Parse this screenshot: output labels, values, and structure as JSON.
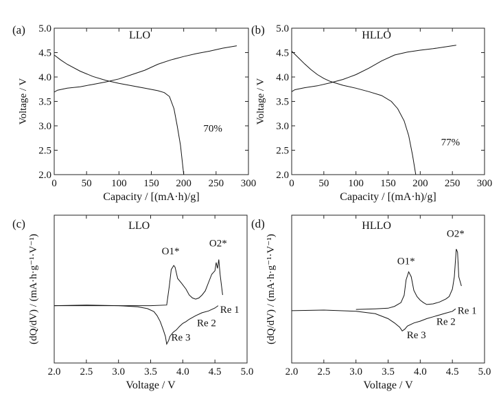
{
  "chart_data": [
    {
      "id": "a",
      "type": "line",
      "panel_label": "(a)",
      "title": "LLO",
      "xlabel": "Capacity / [(mA·h)/g]",
      "ylabel": "Voltage / V",
      "xlim": [
        0,
        300
      ],
      "ylim": [
        2.0,
        5.0
      ],
      "xticks": [
        "0",
        "50",
        "100",
        "150",
        "200",
        "250",
        "300"
      ],
      "yticks": [
        "2.0",
        "2.5",
        "3.0",
        "3.5",
        "4.0",
        "4.5",
        "5.0"
      ],
      "annotations": [
        {
          "text": "70%",
          "x": 245,
          "y": 2.88
        }
      ],
      "series": [
        {
          "values": [
            [
              0,
              3.69
            ],
            [
              5,
              3.73
            ],
            [
              20,
              3.77
            ],
            [
              40,
              3.8
            ],
            [
              60,
              3.85
            ],
            [
              80,
              3.9
            ],
            [
              100,
              3.96
            ],
            [
              120,
              4.05
            ],
            [
              140,
              4.14
            ],
            [
              160,
              4.26
            ],
            [
              180,
              4.35
            ],
            [
              200,
              4.42
            ],
            [
              220,
              4.48
            ],
            [
              240,
              4.53
            ],
            [
              260,
              4.59
            ],
            [
              282,
              4.64
            ]
          ]
        },
        {
          "values": [
            [
              0,
              4.45
            ],
            [
              10,
              4.35
            ],
            [
              20,
              4.26
            ],
            [
              40,
              4.12
            ],
            [
              60,
              4.01
            ],
            [
              80,
              3.93
            ],
            [
              100,
              3.87
            ],
            [
              120,
              3.82
            ],
            [
              140,
              3.77
            ],
            [
              160,
              3.72
            ],
            [
              170,
              3.68
            ],
            [
              178,
              3.6
            ],
            [
              185,
              3.35
            ],
            [
              190,
              3.0
            ],
            [
              195,
              2.6
            ],
            [
              200,
              2.0
            ]
          ]
        }
      ]
    },
    {
      "id": "b",
      "type": "line",
      "panel_label": "(b)",
      "title": "HLLO",
      "xlabel": "Capacity / [(mA·h)/g]",
      "ylabel": "Voltage / V",
      "xlim": [
        0,
        300
      ],
      "ylim": [
        2.0,
        5.0
      ],
      "xticks": [
        "0",
        "50",
        "100",
        "150",
        "200",
        "250",
        "300"
      ],
      "yticks": [
        "2.0",
        "2.5",
        "3.0",
        "3.5",
        "4.0",
        "4.5",
        "5.0"
      ],
      "annotations": [
        {
          "text": "77%",
          "x": 247,
          "y": 2.6
        }
      ],
      "series": [
        {
          "values": [
            [
              0,
              3.7
            ],
            [
              5,
              3.74
            ],
            [
              20,
              3.78
            ],
            [
              40,
              3.82
            ],
            [
              60,
              3.88
            ],
            [
              80,
              3.95
            ],
            [
              100,
              4.05
            ],
            [
              120,
              4.18
            ],
            [
              140,
              4.33
            ],
            [
              160,
              4.45
            ],
            [
              180,
              4.51
            ],
            [
              200,
              4.55
            ],
            [
              220,
              4.58
            ],
            [
              240,
              4.62
            ],
            [
              256,
              4.65
            ]
          ]
        },
        {
          "values": [
            [
              0,
              4.53
            ],
            [
              10,
              4.4
            ],
            [
              20,
              4.27
            ],
            [
              30,
              4.15
            ],
            [
              40,
              4.05
            ],
            [
              50,
              3.97
            ],
            [
              60,
              3.91
            ],
            [
              80,
              3.83
            ],
            [
              100,
              3.77
            ],
            [
              120,
              3.7
            ],
            [
              140,
              3.62
            ],
            [
              155,
              3.5
            ],
            [
              165,
              3.35
            ],
            [
              175,
              3.1
            ],
            [
              182,
              2.8
            ],
            [
              188,
              2.4
            ],
            [
              193,
              2.0
            ]
          ]
        }
      ]
    },
    {
      "id": "c",
      "type": "line",
      "panel_label": "(c)",
      "title": "LLO",
      "xlabel": "Voltage / V",
      "ylabel": "(dQ/dV) / (mA·h·g⁻¹·V⁻¹)",
      "xlim": [
        2.0,
        5.0
      ],
      "xticks": [
        "2.0",
        "2.5",
        "3.0",
        "3.5",
        "4.0",
        "4.5",
        "5.0"
      ],
      "yticks": [],
      "annotations": [
        {
          "text": "O1*",
          "x": 3.81,
          "y": 0.84
        },
        {
          "text": "O2*",
          "x": 4.55,
          "y": 0.97
        },
        {
          "text": "Re 1",
          "x": 4.73,
          "y": -0.15
        },
        {
          "text": "Re 2",
          "x": 4.37,
          "y": -0.38
        },
        {
          "text": "Re 3",
          "x": 3.97,
          "y": -0.62
        }
      ],
      "series": [
        {
          "values": [
            [
              2.0,
              -0.03
            ],
            [
              2.5,
              -0.03
            ],
            [
              3.0,
              -0.03
            ],
            [
              3.5,
              -0.03
            ],
            [
              3.75,
              -0.02
            ],
            [
              3.79,
              0.3
            ],
            [
              3.82,
              0.58
            ],
            [
              3.86,
              0.65
            ],
            [
              3.88,
              0.62
            ],
            [
              3.92,
              0.43
            ],
            [
              3.98,
              0.35
            ],
            [
              4.05,
              0.25
            ],
            [
              4.1,
              0.15
            ],
            [
              4.15,
              0.1
            ],
            [
              4.2,
              0.08
            ],
            [
              4.25,
              0.1
            ],
            [
              4.3,
              0.15
            ],
            [
              4.35,
              0.22
            ],
            [
              4.4,
              0.36
            ],
            [
              4.45,
              0.5
            ],
            [
              4.5,
              0.56
            ],
            [
              4.52,
              0.7
            ],
            [
              4.54,
              0.6
            ],
            [
              4.56,
              0.75
            ],
            [
              4.58,
              0.5
            ],
            [
              4.62,
              0.15
            ]
          ]
        },
        {
          "values": [
            [
              2.0,
              -0.03
            ],
            [
              2.5,
              -0.02
            ],
            [
              3.0,
              -0.03
            ],
            [
              3.3,
              -0.05
            ],
            [
              3.45,
              -0.08
            ],
            [
              3.55,
              -0.13
            ],
            [
              3.6,
              -0.2
            ],
            [
              3.65,
              -0.3
            ],
            [
              3.7,
              -0.45
            ],
            [
              3.73,
              -0.55
            ],
            [
              3.75,
              -0.68
            ],
            [
              3.78,
              -0.62
            ],
            [
              3.8,
              -0.55
            ],
            [
              3.85,
              -0.48
            ],
            [
              3.9,
              -0.44
            ],
            [
              3.95,
              -0.38
            ],
            [
              4.0,
              -0.33
            ],
            [
              4.05,
              -0.3
            ],
            [
              4.1,
              -0.26
            ],
            [
              4.2,
              -0.2
            ],
            [
              4.3,
              -0.15
            ],
            [
              4.4,
              -0.12
            ],
            [
              4.5,
              -0.07
            ],
            [
              4.55,
              -0.03
            ]
          ]
        }
      ]
    },
    {
      "id": "d",
      "type": "line",
      "panel_label": "(d)",
      "title": "HLLO",
      "xlabel": "Voltage / V",
      "ylabel": "(dQ/dV) / (mA·h·g⁻¹·V⁻¹)",
      "xlim": [
        2.0,
        5.0
      ],
      "xticks": [
        "2.0",
        "2.5",
        "3.0",
        "3.5",
        "4.0",
        "4.5",
        "5.0"
      ],
      "yticks": [],
      "annotations": [
        {
          "text": "O1*",
          "x": 3.78,
          "y": 0.7
        },
        {
          "text": "O2*",
          "x": 4.55,
          "y": 1.15
        },
        {
          "text": "Re 1",
          "x": 4.73,
          "y": -0.1
        },
        {
          "text": "Re 2",
          "x": 4.4,
          "y": -0.28
        },
        {
          "text": "Re 3",
          "x": 3.94,
          "y": -0.5
        }
      ],
      "series": [
        {
          "values": [
            [
              3.0,
              -0.03
            ],
            [
              3.3,
              -0.02
            ],
            [
              3.5,
              -0.01
            ],
            [
              3.6,
              0.02
            ],
            [
              3.7,
              0.08
            ],
            [
              3.75,
              0.2
            ],
            [
              3.78,
              0.45
            ],
            [
              3.82,
              0.58
            ],
            [
              3.86,
              0.5
            ],
            [
              3.9,
              0.28
            ],
            [
              3.95,
              0.18
            ],
            [
              4.0,
              0.12
            ],
            [
              4.05,
              0.08
            ],
            [
              4.1,
              0.05
            ],
            [
              4.2,
              0.06
            ],
            [
              4.3,
              0.09
            ],
            [
              4.4,
              0.14
            ],
            [
              4.45,
              0.18
            ],
            [
              4.5,
              0.3
            ],
            [
              4.53,
              0.5
            ],
            [
              4.56,
              0.95
            ],
            [
              4.58,
              0.9
            ],
            [
              4.6,
              0.5
            ],
            [
              4.64,
              0.35
            ]
          ]
        },
        {
          "values": [
            [
              2.0,
              -0.05
            ],
            [
              2.5,
              -0.04
            ],
            [
              3.0,
              -0.06
            ],
            [
              3.3,
              -0.1
            ],
            [
              3.5,
              -0.18
            ],
            [
              3.6,
              -0.25
            ],
            [
              3.68,
              -0.32
            ],
            [
              3.72,
              -0.38
            ],
            [
              3.76,
              -0.35
            ],
            [
              3.8,
              -0.3
            ],
            [
              3.9,
              -0.25
            ],
            [
              4.0,
              -0.22
            ],
            [
              4.1,
              -0.18
            ],
            [
              4.2,
              -0.15
            ],
            [
              4.3,
              -0.12
            ],
            [
              4.4,
              -0.09
            ],
            [
              4.5,
              -0.06
            ],
            [
              4.55,
              -0.02
            ]
          ]
        }
      ]
    }
  ]
}
